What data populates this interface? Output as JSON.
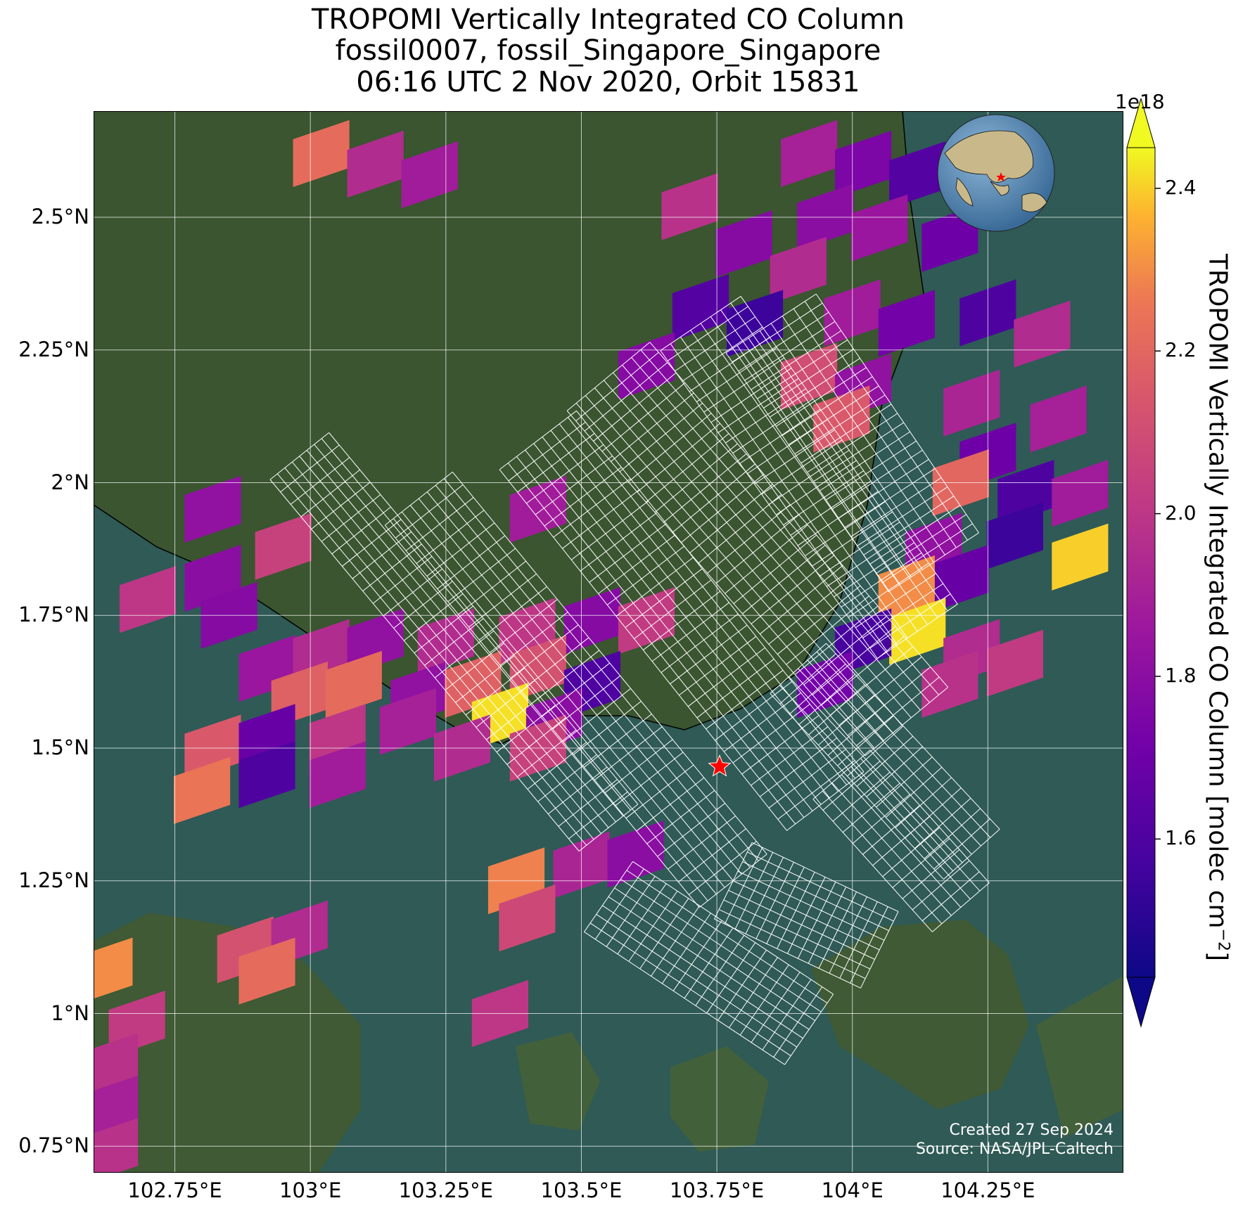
{
  "title": {
    "line1": "TROPOMI Vertically Integrated CO Column",
    "line2": "fossil0007, fossil_Singapore_Singapore",
    "line3": "06:16 UTC 2 Nov 2020, Orbit 15831"
  },
  "map": {
    "lon_range": [
      102.6,
      104.5
    ],
    "lat_range": [
      0.7,
      2.7
    ],
    "lat_ticks": [
      {
        "value": 2.5,
        "label": "2.5°N"
      },
      {
        "value": 2.25,
        "label": "2.25°N"
      },
      {
        "value": 2.0,
        "label": "2°N"
      },
      {
        "value": 1.75,
        "label": "1.75°N"
      },
      {
        "value": 1.5,
        "label": "1.5°N"
      },
      {
        "value": 1.25,
        "label": "1.25°N"
      },
      {
        "value": 1.0,
        "label": "1°N"
      },
      {
        "value": 0.75,
        "label": "0.75°N"
      }
    ],
    "lon_ticks": [
      {
        "value": 102.75,
        "label": "102.75°E"
      },
      {
        "value": 103.0,
        "label": "103°E"
      },
      {
        "value": 103.25,
        "label": "103.25°E"
      },
      {
        "value": 103.5,
        "label": "103.5°E"
      },
      {
        "value": 103.75,
        "label": "103.75°E"
      },
      {
        "value": 104.0,
        "label": "104°E"
      },
      {
        "value": 104.25,
        "label": "104.25°E"
      }
    ],
    "target_marker": {
      "lon": 103.755,
      "lat": 1.465,
      "color": "#ff0000"
    },
    "inset_globe": "world-globe-icon",
    "colors": {
      "ocean": "#2f5a56",
      "land": "#3a5530",
      "grid": "#ffffff",
      "coast": "#000000"
    }
  },
  "colorbar": {
    "exponent_label": "1e18",
    "label": "TROPOMI Vertically Integrated CO Column [molec cm",
    "label_sup": "−2",
    "label_end": "]",
    "range": [
      1.43,
      2.45
    ],
    "colormap": "plasma",
    "ticks": [
      {
        "value": 2.4,
        "label": "2.4"
      },
      {
        "value": 2.2,
        "label": "2.2"
      },
      {
        "value": 2.0,
        "label": "2.0"
      },
      {
        "value": 1.8,
        "label": "1.8"
      },
      {
        "value": 1.6,
        "label": "1.6"
      }
    ]
  },
  "credit": {
    "line1": "Created 27 Sep 2024",
    "line2": "Source: NASA/JPL-Caltech"
  },
  "chart_data": {
    "type": "heatmap",
    "xlim": [
      102.6,
      104.5
    ],
    "ylim": [
      0.7,
      2.7
    ],
    "value_units": "1e18 molec cm^-2",
    "cells": [
      {
        "lon": 103.02,
        "lat": 2.62,
        "v": 2.22
      },
      {
        "lon": 103.12,
        "lat": 2.6,
        "v": 1.95
      },
      {
        "lon": 103.22,
        "lat": 2.58,
        "v": 1.88
      },
      {
        "lon": 103.92,
        "lat": 2.62,
        "v": 1.9
      },
      {
        "lon": 104.02,
        "lat": 2.6,
        "v": 1.75
      },
      {
        "lon": 104.12,
        "lat": 2.58,
        "v": 1.62
      },
      {
        "lon": 103.95,
        "lat": 2.5,
        "v": 1.8
      },
      {
        "lon": 104.05,
        "lat": 2.48,
        "v": 1.85
      },
      {
        "lon": 104.18,
        "lat": 2.46,
        "v": 1.7
      },
      {
        "lon": 103.8,
        "lat": 2.45,
        "v": 1.78
      },
      {
        "lon": 103.9,
        "lat": 2.4,
        "v": 1.95
      },
      {
        "lon": 103.7,
        "lat": 2.52,
        "v": 1.98
      },
      {
        "lon": 103.72,
        "lat": 2.33,
        "v": 1.62
      },
      {
        "lon": 103.82,
        "lat": 2.3,
        "v": 1.55
      },
      {
        "lon": 104.0,
        "lat": 2.32,
        "v": 1.88
      },
      {
        "lon": 104.1,
        "lat": 2.3,
        "v": 1.72
      },
      {
        "lon": 104.25,
        "lat": 2.32,
        "v": 1.6
      },
      {
        "lon": 104.35,
        "lat": 2.28,
        "v": 1.95
      },
      {
        "lon": 103.62,
        "lat": 2.22,
        "v": 1.78
      },
      {
        "lon": 103.92,
        "lat": 2.2,
        "v": 2.1
      },
      {
        "lon": 104.02,
        "lat": 2.18,
        "v": 1.82
      },
      {
        "lon": 103.98,
        "lat": 2.12,
        "v": 2.15
      },
      {
        "lon": 104.22,
        "lat": 2.15,
        "v": 1.92
      },
      {
        "lon": 104.38,
        "lat": 2.12,
        "v": 1.9
      },
      {
        "lon": 104.25,
        "lat": 2.05,
        "v": 1.7
      },
      {
        "lon": 104.32,
        "lat": 1.98,
        "v": 1.6
      },
      {
        "lon": 104.42,
        "lat": 1.98,
        "v": 1.88
      },
      {
        "lon": 104.2,
        "lat": 2.0,
        "v": 2.2
      },
      {
        "lon": 104.3,
        "lat": 1.9,
        "v": 1.55
      },
      {
        "lon": 104.42,
        "lat": 1.86,
        "v": 2.4
      },
      {
        "lon": 104.15,
        "lat": 1.88,
        "v": 1.82
      },
      {
        "lon": 104.2,
        "lat": 1.82,
        "v": 1.68
      },
      {
        "lon": 104.1,
        "lat": 1.8,
        "v": 2.3
      },
      {
        "lon": 104.12,
        "lat": 1.72,
        "v": 2.42
      },
      {
        "lon": 104.02,
        "lat": 1.7,
        "v": 1.58
      },
      {
        "lon": 104.22,
        "lat": 1.68,
        "v": 1.95
      },
      {
        "lon": 104.3,
        "lat": 1.66,
        "v": 2.02
      },
      {
        "lon": 103.95,
        "lat": 1.62,
        "v": 1.72
      },
      {
        "lon": 104.18,
        "lat": 1.62,
        "v": 1.98
      },
      {
        "lon": 102.82,
        "lat": 1.95,
        "v": 1.82
      },
      {
        "lon": 102.95,
        "lat": 1.88,
        "v": 2.05
      },
      {
        "lon": 102.82,
        "lat": 1.82,
        "v": 1.8
      },
      {
        "lon": 102.7,
        "lat": 1.78,
        "v": 2.0
      },
      {
        "lon": 102.85,
        "lat": 1.75,
        "v": 1.78
      },
      {
        "lon": 103.42,
        "lat": 1.95,
        "v": 1.88
      },
      {
        "lon": 102.92,
        "lat": 1.65,
        "v": 1.85
      },
      {
        "lon": 103.02,
        "lat": 1.68,
        "v": 1.95
      },
      {
        "lon": 103.12,
        "lat": 1.7,
        "v": 1.82
      },
      {
        "lon": 103.25,
        "lat": 1.7,
        "v": 1.95
      },
      {
        "lon": 103.4,
        "lat": 1.72,
        "v": 2.0
      },
      {
        "lon": 103.52,
        "lat": 1.74,
        "v": 1.78
      },
      {
        "lon": 103.62,
        "lat": 1.74,
        "v": 2.02
      },
      {
        "lon": 102.98,
        "lat": 1.6,
        "v": 2.18
      },
      {
        "lon": 103.08,
        "lat": 1.62,
        "v": 2.22
      },
      {
        "lon": 103.2,
        "lat": 1.6,
        "v": 1.82
      },
      {
        "lon": 103.3,
        "lat": 1.62,
        "v": 2.18
      },
      {
        "lon": 103.42,
        "lat": 1.65,
        "v": 2.12
      },
      {
        "lon": 103.52,
        "lat": 1.62,
        "v": 1.6
      },
      {
        "lon": 102.82,
        "lat": 1.5,
        "v": 2.15
      },
      {
        "lon": 102.92,
        "lat": 1.52,
        "v": 1.68
      },
      {
        "lon": 103.05,
        "lat": 1.52,
        "v": 2.0
      },
      {
        "lon": 103.18,
        "lat": 1.55,
        "v": 1.9
      },
      {
        "lon": 103.35,
        "lat": 1.56,
        "v": 2.42
      },
      {
        "lon": 103.45,
        "lat": 1.55,
        "v": 1.8
      },
      {
        "lon": 102.8,
        "lat": 1.42,
        "v": 2.25
      },
      {
        "lon": 102.92,
        "lat": 1.45,
        "v": 1.6
      },
      {
        "lon": 103.05,
        "lat": 1.45,
        "v": 1.88
      },
      {
        "lon": 103.28,
        "lat": 1.5,
        "v": 1.95
      },
      {
        "lon": 103.42,
        "lat": 1.5,
        "v": 2.05
      },
      {
        "lon": 103.38,
        "lat": 1.25,
        "v": 2.28
      },
      {
        "lon": 103.5,
        "lat": 1.28,
        "v": 1.92
      },
      {
        "lon": 103.6,
        "lat": 1.3,
        "v": 1.8
      },
      {
        "lon": 103.4,
        "lat": 1.18,
        "v": 2.08
      },
      {
        "lon": 102.88,
        "lat": 1.12,
        "v": 2.12
      },
      {
        "lon": 102.98,
        "lat": 1.15,
        "v": 1.95
      },
      {
        "lon": 102.92,
        "lat": 1.08,
        "v": 2.22
      },
      {
        "lon": 103.35,
        "lat": 1.0,
        "v": 2.0
      },
      {
        "lon": 102.62,
        "lat": 1.08,
        "v": 2.3
      },
      {
        "lon": 102.68,
        "lat": 0.98,
        "v": 2.02
      },
      {
        "lon": 102.63,
        "lat": 0.9,
        "v": 1.98
      },
      {
        "lon": 102.63,
        "lat": 0.82,
        "v": 1.9
      },
      {
        "lon": 102.63,
        "lat": 0.74,
        "v": 1.98
      }
    ]
  }
}
